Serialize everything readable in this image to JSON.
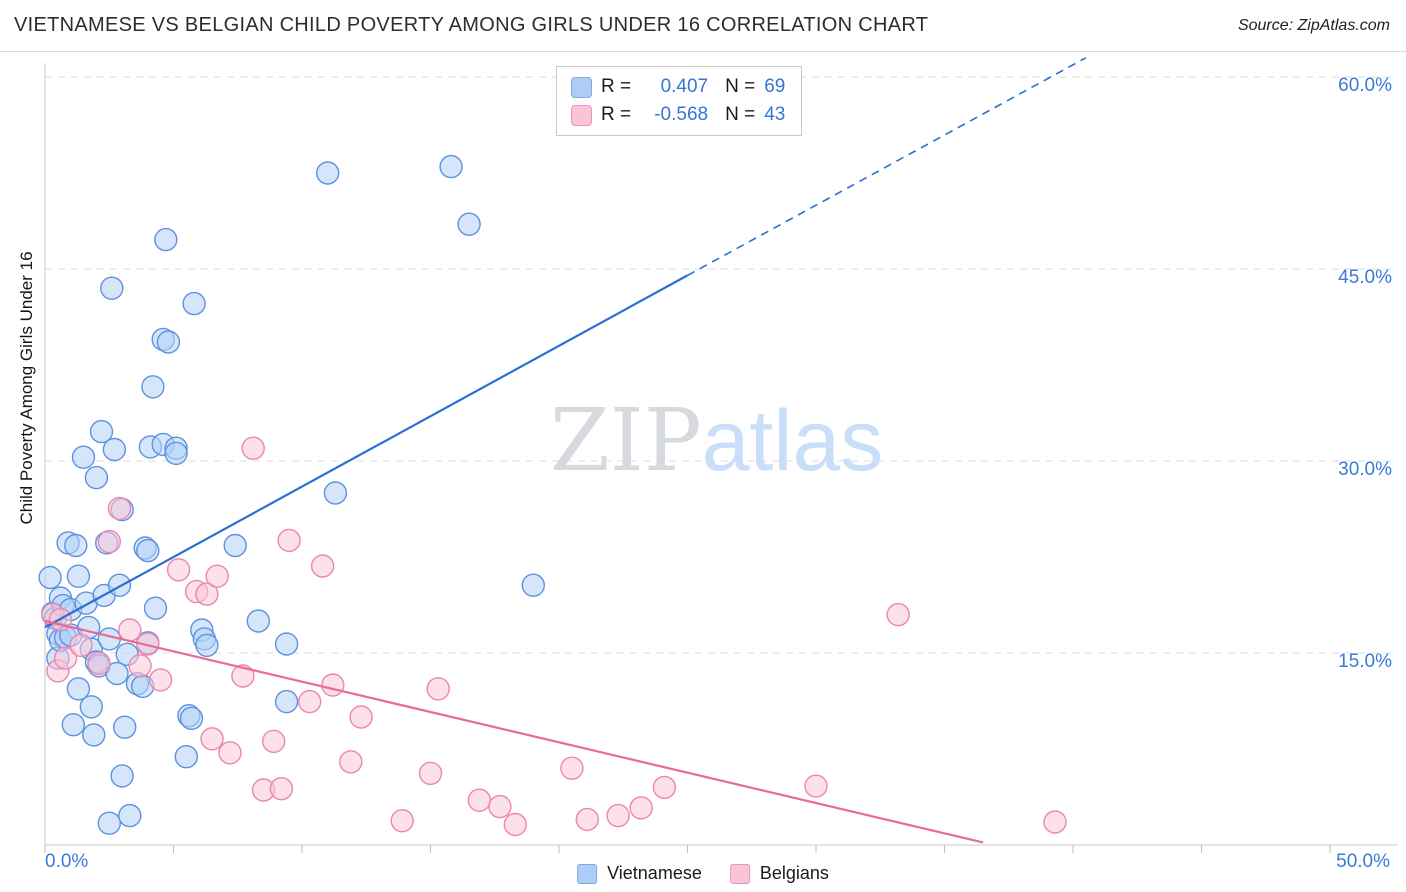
{
  "header": {
    "title": "VIETNAMESE VS BELGIAN CHILD POVERTY AMONG GIRLS UNDER 16 CORRELATION CHART",
    "source": "Source: ZipAtlas.com"
  },
  "watermark": {
    "zip": "ZIP",
    "atlas": "atlas"
  },
  "legend_box": {
    "rows": [
      {
        "r_label": "R =",
        "r_value": "0.407",
        "n_label": "N =",
        "n_value": "69",
        "series": "Vietnamese"
      },
      {
        "r_label": "R =",
        "r_value": "-0.568",
        "n_label": "N =",
        "n_value": "43",
        "series": "Belgians"
      }
    ]
  },
  "chart_data": {
    "type": "scatter",
    "title": "Vietnamese vs Belgian Child Poverty Among Girls Under 16",
    "ylabel": "Child Poverty Among Girls Under 16",
    "xlabel": "",
    "xlim": [
      0,
      50
    ],
    "ylim": [
      0,
      62
    ],
    "x_axis_labels": [
      {
        "value": 0,
        "label": "0.0%"
      },
      {
        "value": 50,
        "label": "50.0%"
      }
    ],
    "x_ticks": [
      0,
      5,
      10,
      15,
      20,
      25,
      30,
      35,
      40,
      45,
      50
    ],
    "y_gridlines": [
      {
        "value": 15,
        "label": "15.0%"
      },
      {
        "value": 30,
        "label": "30.0%"
      },
      {
        "value": 45,
        "label": "45.0%"
      },
      {
        "value": 60,
        "label": "60.0%"
      }
    ],
    "legend_position": "bottom-center",
    "grid": true,
    "series": [
      {
        "name": "Vietnamese",
        "r": 0.407,
        "n": 69,
        "fill": "#b3d1f7",
        "stroke": "#5d92de",
        "points": [
          [
            0.2,
            20.9
          ],
          [
            0.3,
            18.1
          ],
          [
            0.4,
            17.7
          ],
          [
            0.5,
            16.5
          ],
          [
            0.5,
            14.6
          ],
          [
            0.6,
            16.0
          ],
          [
            0.6,
            19.3
          ],
          [
            0.7,
            18.7
          ],
          [
            0.8,
            16.2
          ],
          [
            0.9,
            23.6
          ],
          [
            1.0,
            16.4
          ],
          [
            1.0,
            18.4
          ],
          [
            1.1,
            9.4
          ],
          [
            1.2,
            23.4
          ],
          [
            1.3,
            21.0
          ],
          [
            1.3,
            12.2
          ],
          [
            1.5,
            30.3
          ],
          [
            1.6,
            18.9
          ],
          [
            1.7,
            17.0
          ],
          [
            1.8,
            15.3
          ],
          [
            1.8,
            10.8
          ],
          [
            1.9,
            8.6
          ],
          [
            2.0,
            28.7
          ],
          [
            2.0,
            14.3
          ],
          [
            2.1,
            14.0
          ],
          [
            2.2,
            32.3
          ],
          [
            2.3,
            19.5
          ],
          [
            2.4,
            23.6
          ],
          [
            2.5,
            16.1
          ],
          [
            2.5,
            1.7
          ],
          [
            2.6,
            43.5
          ],
          [
            2.7,
            30.9
          ],
          [
            2.8,
            13.4
          ],
          [
            2.9,
            20.3
          ],
          [
            3.0,
            26.2
          ],
          [
            3.0,
            5.4
          ],
          [
            3.1,
            9.2
          ],
          [
            3.2,
            14.9
          ],
          [
            3.3,
            2.3
          ],
          [
            3.6,
            12.6
          ],
          [
            3.8,
            12.4
          ],
          [
            3.9,
            23.2
          ],
          [
            4.0,
            23.0
          ],
          [
            4.0,
            15.8
          ],
          [
            4.1,
            31.1
          ],
          [
            4.2,
            35.8
          ],
          [
            4.3,
            18.5
          ],
          [
            4.6,
            39.5
          ],
          [
            4.6,
            31.3
          ],
          [
            4.7,
            47.3
          ],
          [
            4.8,
            39.3
          ],
          [
            5.1,
            31.0
          ],
          [
            5.1,
            30.6
          ],
          [
            5.5,
            6.9
          ],
          [
            5.6,
            10.1
          ],
          [
            5.7,
            9.9
          ],
          [
            5.8,
            42.3
          ],
          [
            6.1,
            16.8
          ],
          [
            6.2,
            16.1
          ],
          [
            6.3,
            15.6
          ],
          [
            7.4,
            23.4
          ],
          [
            8.3,
            17.5
          ],
          [
            9.4,
            15.7
          ],
          [
            9.4,
            11.2
          ],
          [
            11.0,
            52.5
          ],
          [
            11.3,
            27.5
          ],
          [
            15.8,
            53.0
          ],
          [
            16.5,
            48.5
          ],
          [
            19.0,
            20.3
          ]
        ]
      },
      {
        "name": "Belgians",
        "r": -0.568,
        "n": 43,
        "fill": "#f9c6d9",
        "stroke": "#ee85ad",
        "points": [
          [
            0.3,
            18.0
          ],
          [
            0.5,
            13.6
          ],
          [
            0.6,
            17.6
          ],
          [
            0.8,
            14.6
          ],
          [
            1.4,
            15.6
          ],
          [
            2.1,
            14.2
          ],
          [
            2.5,
            23.7
          ],
          [
            2.9,
            26.3
          ],
          [
            3.3,
            16.8
          ],
          [
            3.7,
            14.0
          ],
          [
            4.0,
            15.7
          ],
          [
            4.5,
            12.9
          ],
          [
            5.2,
            21.5
          ],
          [
            5.9,
            19.8
          ],
          [
            6.3,
            19.6
          ],
          [
            6.5,
            8.3
          ],
          [
            6.7,
            21.0
          ],
          [
            7.2,
            7.2
          ],
          [
            7.7,
            13.2
          ],
          [
            8.1,
            31.0
          ],
          [
            8.5,
            4.3
          ],
          [
            8.9,
            8.1
          ],
          [
            9.2,
            4.4
          ],
          [
            9.5,
            23.8
          ],
          [
            10.3,
            11.2
          ],
          [
            10.8,
            21.8
          ],
          [
            11.2,
            12.5
          ],
          [
            11.9,
            6.5
          ],
          [
            12.3,
            10.0
          ],
          [
            13.9,
            1.9
          ],
          [
            15.0,
            5.6
          ],
          [
            15.3,
            12.2
          ],
          [
            16.9,
            3.5
          ],
          [
            17.7,
            3.0
          ],
          [
            18.3,
            1.6
          ],
          [
            20.5,
            6.0
          ],
          [
            21.1,
            2.0
          ],
          [
            22.3,
            2.3
          ],
          [
            23.2,
            2.9
          ],
          [
            24.1,
            4.5
          ],
          [
            30.0,
            4.6
          ],
          [
            33.2,
            18.0
          ],
          [
            39.3,
            1.8
          ]
        ]
      }
    ],
    "trend_lines": [
      {
        "series": "Vietnamese",
        "color": "#2a6fd2",
        "solid": [
          [
            0,
            17.0
          ],
          [
            25.0,
            44.5
          ]
        ],
        "dashed": [
          [
            25.0,
            44.5
          ],
          [
            40.5,
            61.5
          ]
        ]
      },
      {
        "series": "Belgians",
        "color": "#e9699a",
        "solid": [
          [
            0,
            17.5
          ],
          [
            36.5,
            0.2
          ]
        ]
      }
    ],
    "colors": {
      "accent_blue": "#3b7ad8",
      "accent_pink": "#ee85ad",
      "gridline": "#dedede",
      "axis": "#c9c9c9"
    }
  }
}
